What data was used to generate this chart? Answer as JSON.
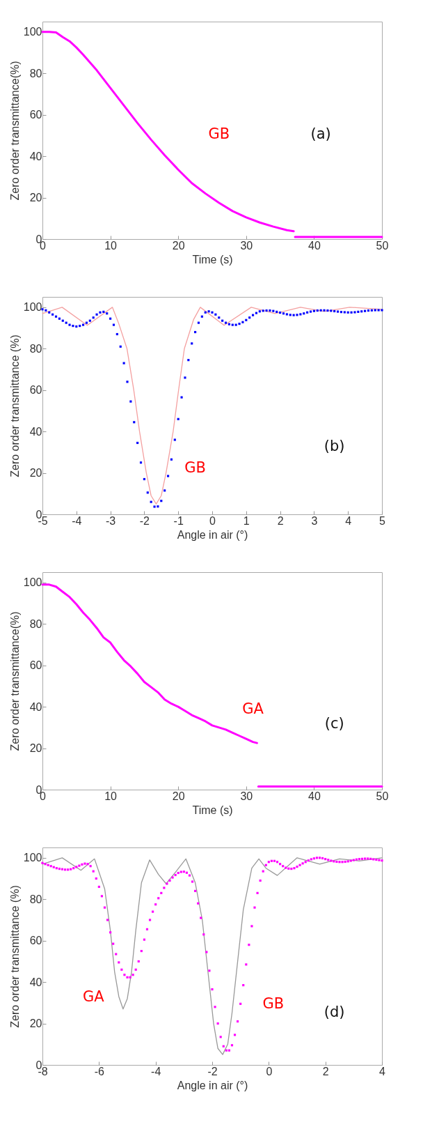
{
  "chart_data": [
    {
      "type": "line",
      "xlabel": "Time (s)",
      "ylabel": "Zero order transmittance(%)",
      "xlim": [
        0,
        50
      ],
      "ylim": [
        0,
        105
      ],
      "xticks": [
        0,
        10,
        20,
        30,
        40,
        50
      ],
      "yticks": [
        0,
        20,
        40,
        60,
        80,
        100
      ],
      "series": [
        {
          "color": "#ff00ff",
          "x": [
            0,
            1,
            2,
            3,
            4,
            5,
            6,
            8,
            10,
            12,
            14,
            16,
            18,
            20,
            22,
            24,
            26,
            28,
            30,
            32,
            34,
            36,
            37
          ],
          "values": [
            100,
            100,
            99.8,
            97.5,
            95.5,
            92.5,
            89,
            81.5,
            73,
            64.5,
            56,
            48,
            40.5,
            33.5,
            27,
            22,
            17.5,
            13.5,
            10.5,
            8,
            6,
            4.3,
            3.8
          ]
        },
        {
          "color": "#ff00ff",
          "x": [
            37.2,
            50
          ],
          "values": [
            1,
            1
          ]
        }
      ],
      "annotations": [
        "GB",
        "(a)"
      ]
    },
    {
      "type": "line",
      "xlabel": "Angle in air (°)",
      "ylabel": "Zero order transmittance (%)",
      "xlim": [
        -5,
        5
      ],
      "ylim": [
        0,
        105
      ],
      "xticks": [
        -5,
        -4,
        -3,
        -2,
        -1,
        0,
        1,
        2,
        3,
        4,
        5
      ],
      "yticks": [
        0,
        20,
        40,
        60,
        80,
        100
      ],
      "series": [
        {
          "color": "#f4a0a0",
          "x": [
            -5,
            -4.42,
            -3.68,
            -2.94,
            -2.75,
            -2.51,
            -2.31,
            -2.14,
            -1.94,
            -1.8,
            -1.65,
            -1.5,
            -1.36,
            -1.15,
            -0.99,
            -0.82,
            -0.55,
            -0.35,
            0.35,
            1.15,
            1.85,
            2.6,
            3.3,
            4.05,
            5
          ],
          "values": [
            97,
            100,
            91.3,
            100,
            92,
            80,
            60,
            40,
            20,
            9,
            5,
            9,
            20,
            40,
            60,
            80,
            94,
            100,
            91.3,
            100,
            97,
            100,
            98,
            100,
            99
          ]
        },
        {
          "type": "scatter",
          "marker": "square",
          "color": "#0000ff",
          "x": [
            -5,
            -4.9,
            -4.8,
            -4.7,
            -4.6,
            -4.5,
            -4.4,
            -4.3,
            -4.2,
            -4.1,
            -4,
            -3.9,
            -3.8,
            -3.7,
            -3.6,
            -3.5,
            -3.4,
            -3.3,
            -3.2,
            -3.1,
            -3,
            -2.9,
            -2.8,
            -2.7,
            -2.6,
            -2.5,
            -2.4,
            -2.3,
            -2.2,
            -2.1,
            -2,
            -1.9,
            -1.8,
            -1.7,
            -1.6,
            -1.5,
            -1.4,
            -1.3,
            -1.2,
            -1.1,
            -1,
            -0.9,
            -0.8,
            -0.7,
            -0.6,
            -0.5,
            -0.4,
            -0.3,
            -0.2,
            -0.1,
            0,
            0.1,
            0.2,
            0.3,
            0.4,
            0.5,
            0.6,
            0.7,
            0.8,
            0.9,
            1,
            1.1,
            1.2,
            1.3,
            1.4,
            1.5,
            1.6,
            1.7,
            1.8,
            1.9,
            2,
            2.1,
            2.2,
            2.3,
            2.4,
            2.5,
            2.6,
            2.7,
            2.8,
            2.9,
            3,
            3.1,
            3.2,
            3.3,
            3.4,
            3.5,
            3.6,
            3.7,
            3.8,
            3.9,
            4,
            4.1,
            4.2,
            4.3,
            4.4,
            4.5,
            4.6,
            4.7,
            4.8,
            4.9,
            5
          ],
          "values": [
            99,
            98.5,
            97.5,
            96.5,
            95.5,
            94.5,
            93.5,
            92.5,
            91.5,
            91,
            90.7,
            91,
            91.5,
            92.5,
            93.5,
            95,
            96.5,
            97.5,
            97.8,
            97,
            94.5,
            91.5,
            87,
            81,
            73,
            64,
            54.5,
            44.5,
            34.5,
            25,
            17,
            10.5,
            6,
            3.7,
            3.8,
            6.5,
            11.5,
            18.5,
            26.5,
            36,
            46,
            56.5,
            66,
            74.5,
            82.5,
            88,
            92.5,
            95.5,
            97.5,
            98,
            97.5,
            96.5,
            95,
            93.5,
            92.5,
            91.8,
            91.5,
            91.5,
            92,
            92.8,
            93.8,
            95,
            96.2,
            97.2,
            98,
            98.3,
            98.4,
            98.4,
            98.2,
            97.8,
            97.4,
            97,
            96.6,
            96.3,
            96.2,
            96.3,
            96.6,
            97,
            97.5,
            97.9,
            98.2,
            98.4,
            98.5,
            98.5,
            98.4,
            98.3,
            98.1,
            97.9,
            97.7,
            97.6,
            97.5,
            97.5,
            97.6,
            97.8,
            98,
            98.2,
            98.4,
            98.5,
            98.6,
            98.6,
            98.6
          ]
        }
      ],
      "annotations": [
        "GB",
        "(b)"
      ]
    },
    {
      "type": "line",
      "xlabel": "Time (s)",
      "ylabel": "Zero order transmittance(%)",
      "xlim": [
        0,
        50
      ],
      "ylim": [
        0,
        105
      ],
      "xticks": [
        0,
        10,
        20,
        30,
        40,
        50
      ],
      "yticks": [
        0,
        20,
        40,
        60,
        80,
        100
      ],
      "series": [
        {
          "color": "#ff00ff",
          "x": [
            0,
            1,
            2,
            3,
            4,
            5,
            6,
            7,
            8,
            9,
            10,
            11,
            12,
            13,
            14,
            15,
            16,
            17,
            18,
            19,
            20,
            21,
            22,
            23,
            24,
            25,
            26,
            27,
            28,
            29,
            30,
            31,
            31.6
          ],
          "values": [
            99,
            99,
            98,
            95.5,
            93,
            89.5,
            85.5,
            82,
            78,
            73.5,
            71,
            66.5,
            62.5,
            59.5,
            56,
            52,
            49.5,
            47,
            43.5,
            41.5,
            40,
            38,
            36,
            34.5,
            33,
            31,
            30,
            29,
            27.5,
            26,
            24.5,
            23,
            22.5
          ]
        },
        {
          "color": "#ff00ff",
          "x": [
            31.8,
            50
          ],
          "values": [
            1.5,
            1.5
          ]
        }
      ],
      "annotations": [
        "GA",
        "(c)"
      ]
    },
    {
      "type": "line",
      "xlabel": "Angle in air (°)",
      "ylabel": "Zero order transmittance (%)",
      "xlim": [
        -8,
        4
      ],
      "ylim": [
        0,
        105
      ],
      "xticks": [
        -8,
        -6,
        -4,
        -2,
        0,
        2,
        4
      ],
      "yticks": [
        0,
        20,
        40,
        60,
        80,
        100
      ],
      "series": [
        {
          "color": "#999999",
          "x": [
            -8,
            -7.3,
            -6.64,
            -6.16,
            -5.8,
            -5.6,
            -5.45,
            -5.3,
            -5.15,
            -5,
            -4.85,
            -4.7,
            -4.5,
            -4.21,
            -3.9,
            -3.63,
            -3.3,
            -2.93,
            -2.6,
            -2.35,
            -2.15,
            -1.95,
            -1.8,
            -1.63,
            -1.45,
            -1.3,
            -1.1,
            -0.9,
            -0.6,
            -0.35,
            -0.1,
            0.3,
            1,
            1.8,
            2.5,
            3.2,
            4
          ],
          "values": [
            97,
            100,
            94,
            99.5,
            85,
            65,
            45,
            33,
            27,
            32,
            45,
            65,
            88,
            99,
            92,
            87.5,
            93,
            99.5,
            88,
            70,
            45,
            20,
            8,
            5,
            10,
            25,
            50,
            75,
            95,
            99.5,
            95,
            91.5,
            100,
            97,
            99.5,
            98.5,
            100
          ]
        },
        {
          "type": "scatter",
          "marker": "square",
          "color": "#ff00ff",
          "x": [
            -8,
            -7.9,
            -7.8,
            -7.7,
            -7.6,
            -7.5,
            -7.4,
            -7.3,
            -7.2,
            -7.1,
            -7,
            -6.9,
            -6.8,
            -6.7,
            -6.6,
            -6.5,
            -6.4,
            -6.3,
            -6.2,
            -6.1,
            -6,
            -5.9,
            -5.8,
            -5.7,
            -5.6,
            -5.5,
            -5.4,
            -5.3,
            -5.2,
            -5.1,
            -5,
            -4.9,
            -4.8,
            -4.7,
            -4.6,
            -4.5,
            -4.4,
            -4.3,
            -4.2,
            -4.1,
            -4,
            -3.9,
            -3.8,
            -3.7,
            -3.6,
            -3.5,
            -3.4,
            -3.3,
            -3.2,
            -3.1,
            -3,
            -2.9,
            -2.8,
            -2.7,
            -2.6,
            -2.5,
            -2.4,
            -2.3,
            -2.2,
            -2.1,
            -2,
            -1.9,
            -1.8,
            -1.7,
            -1.6,
            -1.5,
            -1.4,
            -1.3,
            -1.2,
            -1.1,
            -1,
            -0.9,
            -0.8,
            -0.7,
            -0.6,
            -0.5,
            -0.4,
            -0.3,
            -0.2,
            -0.1,
            0,
            0.1,
            0.2,
            0.3,
            0.4,
            0.5,
            0.6,
            0.7,
            0.8,
            0.9,
            1,
            1.1,
            1.2,
            1.3,
            1.4,
            1.5,
            1.6,
            1.7,
            1.8,
            1.9,
            2,
            2.1,
            2.2,
            2.3,
            2.4,
            2.5,
            2.6,
            2.7,
            2.8,
            2.9,
            3,
            3.1,
            3.2,
            3.3,
            3.4,
            3.5,
            3.6,
            3.7,
            3.8,
            3.9,
            4
          ],
          "values": [
            97.5,
            97,
            96.5,
            96,
            95.5,
            95,
            94.7,
            94.5,
            94.3,
            94.3,
            94.5,
            95,
            95.6,
            96.2,
            96.8,
            97.2,
            97,
            96,
            93.5,
            90,
            86,
            81.5,
            76,
            70,
            64,
            58.5,
            53.5,
            49.5,
            46,
            43.5,
            42.3,
            42.3,
            43.5,
            46,
            50,
            55,
            60.5,
            65.5,
            70,
            74,
            77.5,
            80.5,
            83,
            85.5,
            87.5,
            89,
            90.5,
            91.7,
            92.7,
            93.2,
            93.3,
            92.8,
            91.5,
            88.5,
            84,
            78,
            71,
            63,
            54.5,
            45.5,
            36.5,
            28,
            20,
            13.5,
            9,
            7,
            7,
            9.5,
            14.5,
            21,
            29.5,
            38.5,
            48.5,
            58,
            67,
            76,
            83,
            89,
            93.5,
            96.5,
            98,
            98.5,
            98.5,
            98,
            97,
            96,
            95.2,
            94.8,
            94.7,
            95,
            95.7,
            96.5,
            97.3,
            98,
            98.7,
            99.3,
            99.7,
            100,
            100,
            99.8,
            99.4,
            99,
            98.6,
            98.3,
            98.1,
            98,
            98,
            98.1,
            98.3,
            98.6,
            98.9,
            99.2,
            99.4,
            99.5,
            99.6,
            99.6,
            99.5,
            99.3,
            99.1,
            98.9,
            98.7
          ]
        }
      ],
      "annotations": [
        "GA",
        "GB",
        "(d)"
      ]
    }
  ]
}
